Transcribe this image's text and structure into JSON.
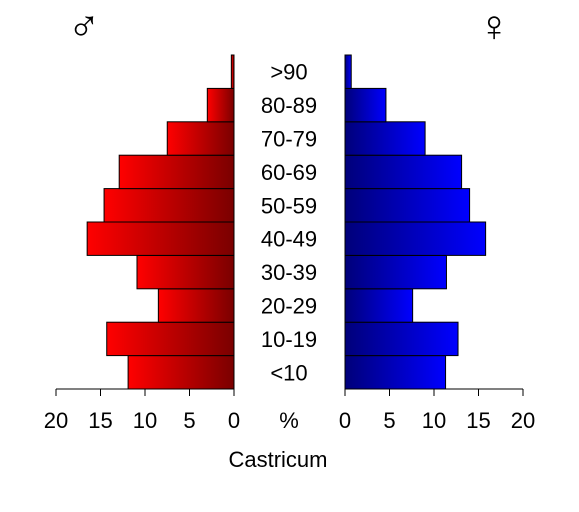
{
  "chart_data": {
    "type": "bar",
    "orientation": "horizontal",
    "title": "Castricum",
    "categories": [
      "<10",
      "10-19",
      "20-29",
      "30-39",
      "40-49",
      "50-59",
      "60-69",
      "70-79",
      "80-89",
      ">90"
    ],
    "series": [
      {
        "name": "♂",
        "side": "left",
        "color_light": "#ff0000",
        "color_dark": "#7a0000",
        "values": [
          11.9,
          14.3,
          8.5,
          10.9,
          16.5,
          14.6,
          12.9,
          7.5,
          3.0,
          0.3
        ]
      },
      {
        "name": "♀",
        "side": "right",
        "color_light": "#0000ff",
        "color_dark": "#00007a",
        "values": [
          11.3,
          12.7,
          7.6,
          11.4,
          15.8,
          14.0,
          13.1,
          9.0,
          4.6,
          0.7
        ]
      }
    ],
    "axis_unit": "%",
    "xlim": [
      0,
      20
    ],
    "ticks": [
      0,
      5,
      10,
      15,
      20
    ],
    "tick_labels": [
      "0",
      "5",
      "10",
      "15",
      "20"
    ],
    "grid": false,
    "legend": "none"
  }
}
